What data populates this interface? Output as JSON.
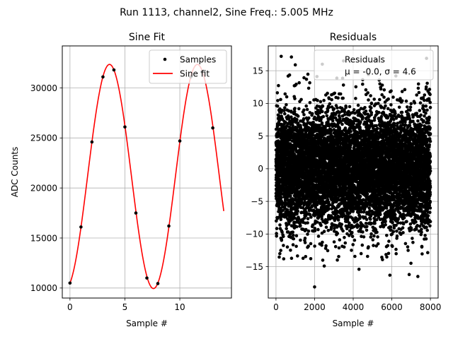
{
  "figure": {
    "suptitle": "Run 1113, channel2, Sine Freq.: 5.005 MHz"
  },
  "chart_data": [
    {
      "type": "line",
      "title": "Sine Fit",
      "xlabel": "Sample #",
      "ylabel": "ADC Counts",
      "xlim": [
        -0.7,
        14.7
      ],
      "ylim": [
        9000,
        34200
      ],
      "xticks": [
        0,
        5,
        10
      ],
      "yticks": [
        10000,
        15000,
        20000,
        25000,
        30000
      ],
      "grid": true,
      "legend_position": "top-right",
      "series": [
        {
          "name": "Samples",
          "style": "points",
          "color": "#000000",
          "x": [
            0,
            1,
            2,
            3,
            4,
            5,
            6,
            7,
            8,
            9,
            10,
            11,
            12,
            13
          ],
          "y": [
            10500,
            16100,
            24600,
            31100,
            31800,
            26100,
            17500,
            11000,
            10450,
            16200,
            24700,
            31100,
            31600,
            26000
          ]
        },
        {
          "name": "Sine fit",
          "style": "line",
          "color": "#ff0000",
          "model": {
            "offset": 21150,
            "amplitude": 11200,
            "period": 8.0,
            "peak_at": 3.6,
            "x_range": [
              0,
              14
            ]
          }
        }
      ]
    },
    {
      "type": "scatter",
      "title": "Residuals",
      "xlabel": "Sample #",
      "ylabel": "",
      "xlim": [
        -400,
        8400
      ],
      "ylim": [
        -19.8,
        18.8
      ],
      "xticks": [
        0,
        2000,
        4000,
        6000,
        8000
      ],
      "yticks": [
        -15,
        -10,
        -5,
        0,
        5,
        10,
        15
      ],
      "grid": true,
      "legend_position": "top-right",
      "series": [
        {
          "name": "Residuals",
          "color": "#000000",
          "distribution": {
            "n_points": 8000,
            "x_range": [
              0,
              8000
            ],
            "mean": 0.0,
            "sigma": 4.6
          },
          "outliers": [
            {
              "x": 270,
              "y": 17.2
            },
            {
              "x": 800,
              "y": 17.1
            },
            {
              "x": 2000,
              "y": -18.1
            },
            {
              "x": 2400,
              "y": 16.0
            },
            {
              "x": 3500,
              "y": 16.5
            },
            {
              "x": 5200,
              "y": 16.6
            },
            {
              "x": 7800,
              "y": 16.9
            },
            {
              "x": 4300,
              "y": -15.4
            },
            {
              "x": 5900,
              "y": -16.3
            },
            {
              "x": 6900,
              "y": -16.2
            },
            {
              "x": 7350,
              "y": -16.5
            },
            {
              "x": 400,
              "y": -13.8
            },
            {
              "x": 2500,
              "y": -14.9
            },
            {
              "x": 1000,
              "y": 15.9
            },
            {
              "x": 200,
              "y": -13.0
            }
          ]
        }
      ],
      "legend_stats": "μ = -0.0, σ = 4.6"
    }
  ]
}
